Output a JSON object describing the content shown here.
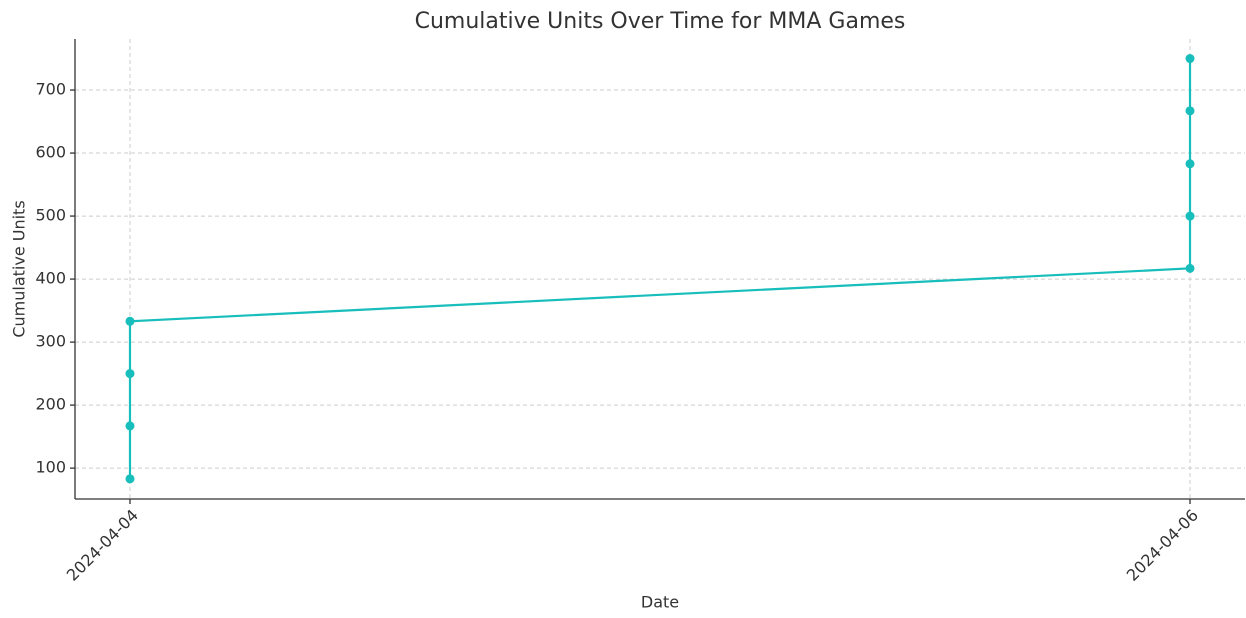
{
  "chart_data": {
    "type": "line",
    "title": "Cumulative Units Over Time for MMA Games",
    "x_label": "Date",
    "y_label": "Cumulative Units",
    "x": [
      "2024-04-04",
      "2024-04-04",
      "2024-04-04",
      "2024-04-04",
      "2024-04-06",
      "2024-04-06",
      "2024-04-06",
      "2024-04-06",
      "2024-04-06"
    ],
    "values": [
      83,
      167,
      250,
      333,
      417,
      500,
      583,
      667,
      750
    ],
    "color": "#17bebb",
    "xticks": [
      "2024-04-04",
      "2024-04-06"
    ],
    "ylim": [
      51,
      781
    ],
    "yticks": [
      100,
      200,
      300,
      400,
      500,
      600,
      700
    ],
    "grid": true,
    "markers": true
  }
}
